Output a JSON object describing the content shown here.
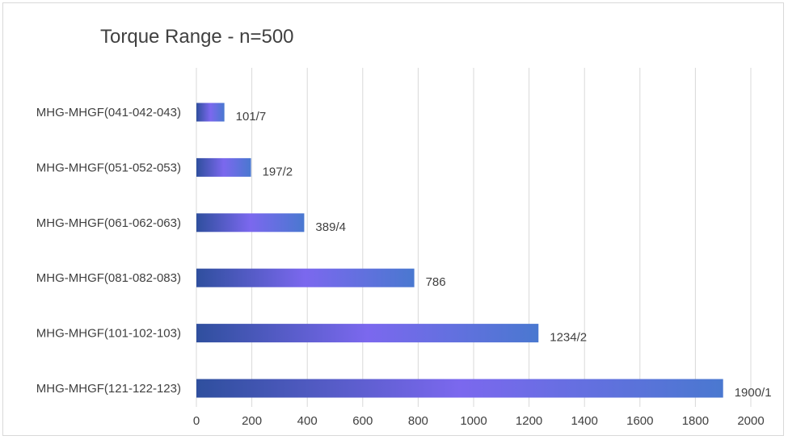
{
  "chart_data": {
    "type": "bar",
    "orientation": "horizontal",
    "title": "Torque Range - n=500",
    "categories": [
      "MHG-MHGF(041-042-043)",
      "MHG-MHGF(051-052-053)",
      "MHG-MHGF(061-062-063)",
      "MHG-MHGF(081-082-083)",
      "MHG-MHGF(101-102-103)",
      "MHG-MHGF(121-122-123)"
    ],
    "values": [
      101,
      197,
      389,
      786,
      1234,
      1900
    ],
    "data_labels": [
      "101/7",
      "197/2",
      "389/4",
      "786",
      "1234/2",
      "1900/1"
    ],
    "xlim": [
      0,
      2000
    ],
    "xticks": [
      0,
      200,
      400,
      600,
      800,
      1000,
      1200,
      1400,
      1600,
      1800,
      2000
    ],
    "grid": "vertical",
    "legend": "none",
    "bar_gradient": [
      "#2f4f9e",
      "#7b68ee",
      "#4a78d0"
    ]
  }
}
